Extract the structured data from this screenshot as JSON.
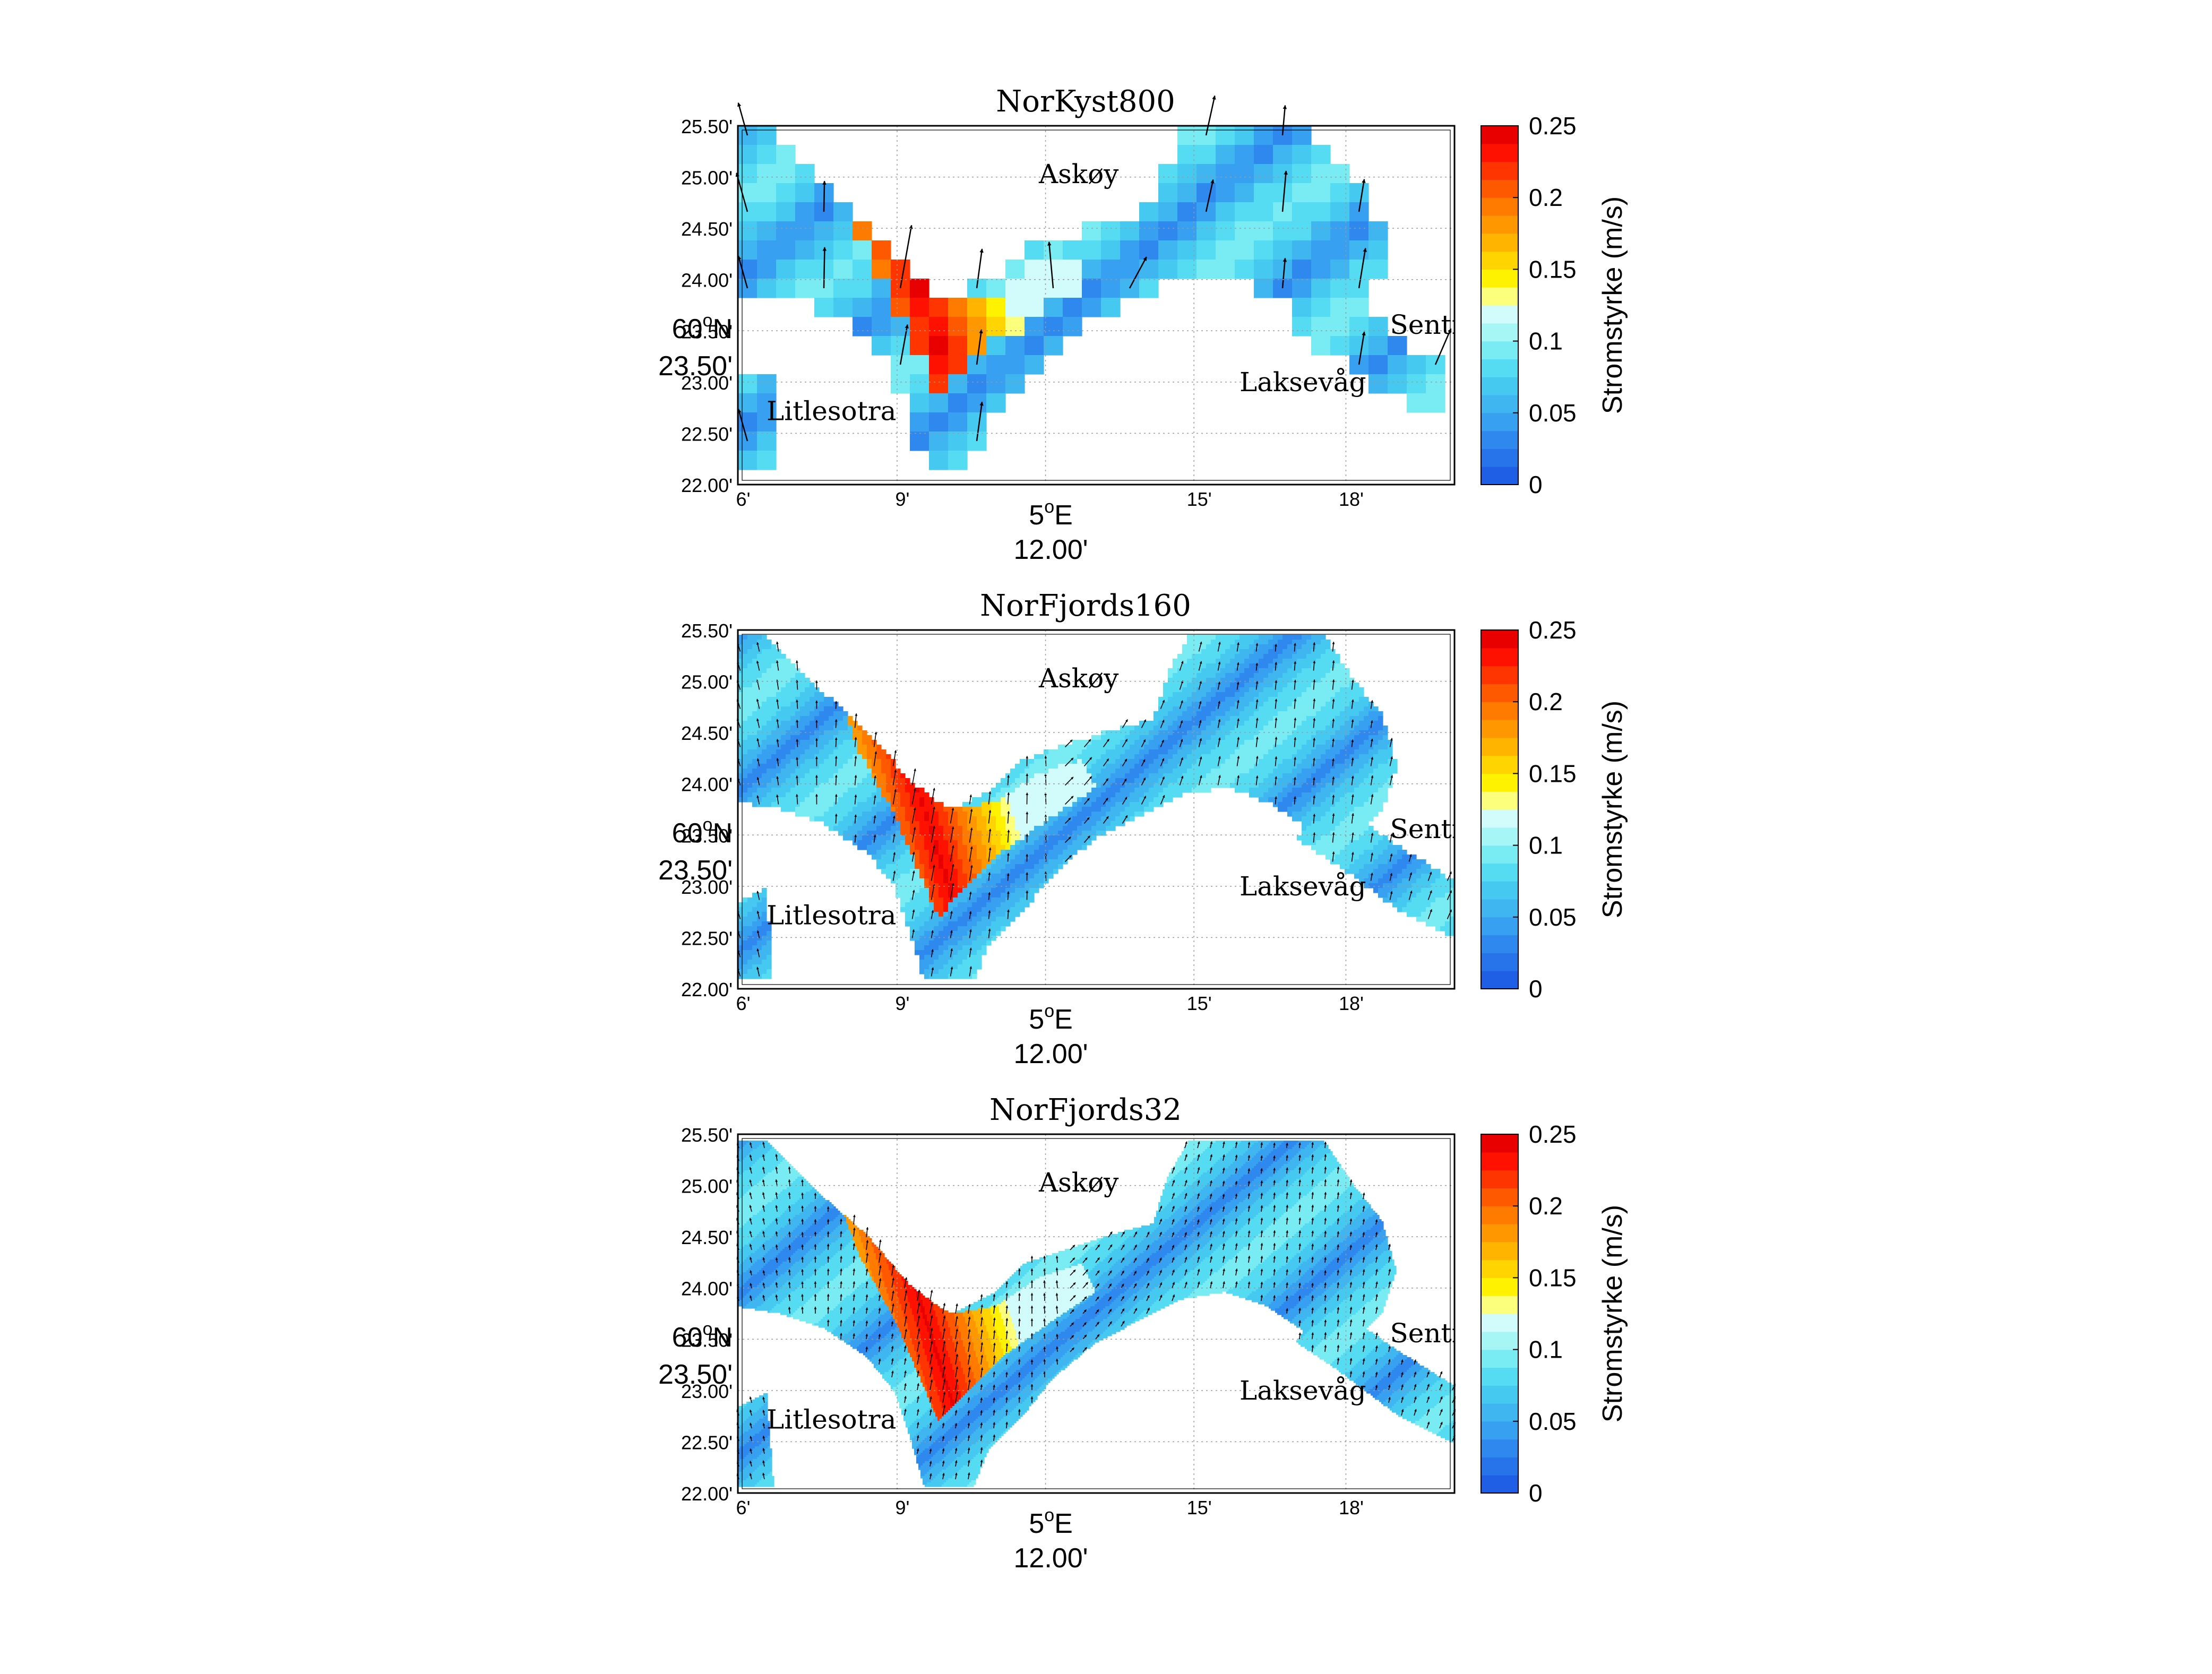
{
  "colorbar": {
    "label": "Stromstyrke (m/s)",
    "ticks": [
      "0.25",
      "0.2",
      "0.15",
      "0.1",
      "0.05",
      "0"
    ],
    "levels": [
      "#1f5fe6",
      "#2673ea",
      "#2e88ee",
      "#37a0f0",
      "#3fb6f0",
      "#46c9f0",
      "#55dcf2",
      "#78ebf3",
      "#a7f6f6",
      "#d2fbfb",
      "#fbff7c",
      "#fff200",
      "#ffd400",
      "#ffb500",
      "#ff9800",
      "#ff7b00",
      "#ff5900",
      "#ff3500",
      "#ff1100",
      "#e80000"
    ]
  },
  "axes": {
    "y_ticks": [
      "25.50'",
      "25.00'",
      "24.50'",
      "24.00'",
      "23.50'",
      "23.00'",
      "22.50'",
      "22.00'"
    ],
    "y_main_label": "60",
    "y_main_suffix": "N",
    "y_main_sup": "o",
    "x_ticks": [
      "6'",
      "9'",
      "15'",
      "18'"
    ],
    "x_main_label": "5",
    "x_main_sup": "o",
    "x_main_suffix": "E",
    "x_sub_label": "12.00'"
  },
  "places": {
    "askoy": "Askøy",
    "sentrum": "Sentrum",
    "laksevag": "Laksevåg",
    "litlesotra": "Litlesotra"
  },
  "panels": [
    {
      "title": "NorKyst800"
    },
    {
      "title": "NorFjords160"
    },
    {
      "title": "NorFjords32"
    }
  ]
}
